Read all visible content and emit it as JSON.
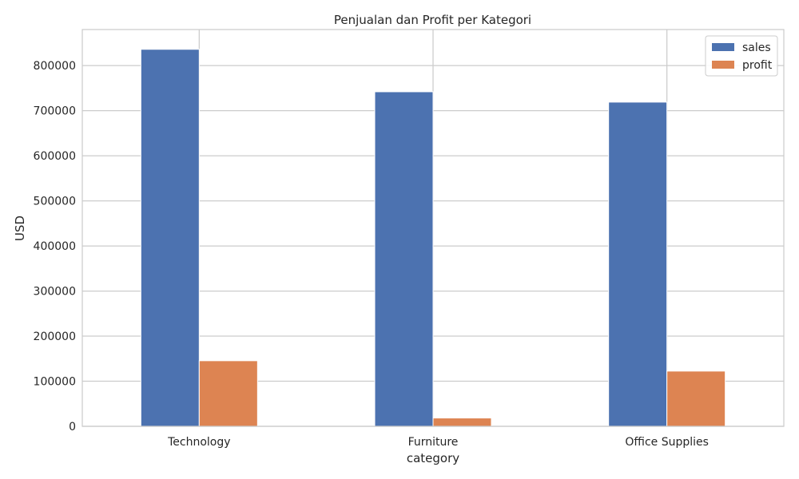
{
  "chart_data": {
    "type": "bar",
    "title": "Penjualan dan Profit per Kategori",
    "xlabel": "category",
    "ylabel": "USD",
    "categories": [
      "Technology",
      "Furniture",
      "Office Supplies"
    ],
    "series": [
      {
        "name": "sales",
        "values": [
          836154,
          741999,
          719047
        ],
        "color": "#4C72B0"
      },
      {
        "name": "profit",
        "values": [
          145455,
          18451,
          122491
        ],
        "color": "#DD8452"
      }
    ],
    "ylim": [
      0,
      880000
    ],
    "yticks": [
      0,
      100000,
      200000,
      300000,
      400000,
      500000,
      600000,
      700000,
      800000
    ],
    "grid": true,
    "legend_position": "top-right"
  }
}
